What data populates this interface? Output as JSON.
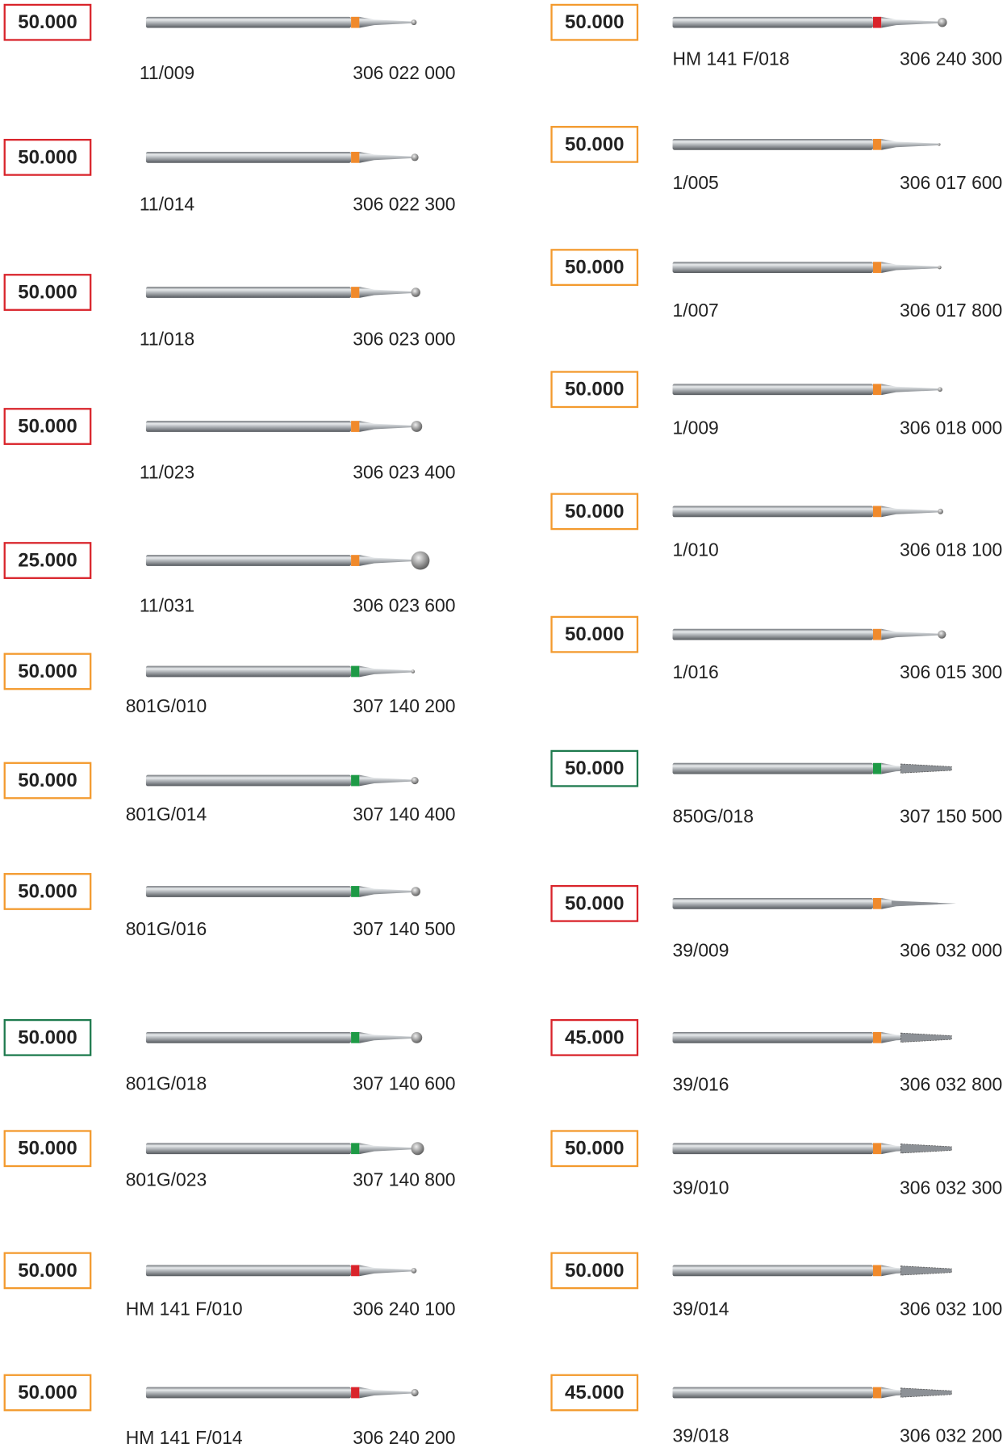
{
  "columns": [
    {
      "items": [
        {
          "speed": "50.000",
          "box_color": "#d9242b",
          "code": "11/009",
          "ref": "306 022 000",
          "band_color": "#f08a2c"
        },
        {
          "speed": "50.000",
          "box_color": "#d9242b",
          "code": "11/014",
          "ref": "306 022 300",
          "band_color": "#f08a2c"
        },
        {
          "speed": "50.000",
          "box_color": "#d9242b",
          "code": "11/018",
          "ref": "306 023 000",
          "band_color": "#f08a2c"
        },
        {
          "speed": "50.000",
          "box_color": "#d9242b",
          "code": "11/023",
          "ref": "306 023 400",
          "band_color": "#f08a2c"
        },
        {
          "speed": "25.000",
          "box_color": "#d9242b",
          "code": "11/031",
          "ref": "306 023 600",
          "band_color": "#f08a2c"
        },
        {
          "speed": "50.000",
          "box_color": "#f39a2e",
          "code": "801G/010",
          "ref": "307 140 200",
          "band_color": "#1e9a46"
        },
        {
          "speed": "50.000",
          "box_color": "#f39a2e",
          "code": "801G/014",
          "ref": "307 140 400",
          "band_color": "#1e9a46"
        },
        {
          "speed": "50.000",
          "box_color": "#f39a2e",
          "code": "801G/016",
          "ref": "307 140 500",
          "band_color": "#1e9a46"
        },
        {
          "speed": "50.000",
          "box_color": "#1e7a4e",
          "code": "801G/018",
          "ref": "307 140 600",
          "band_color": "#1e9a46"
        },
        {
          "speed": "50.000",
          "box_color": "#f39a2e",
          "code": "801G/023",
          "ref": "307 140 800",
          "band_color": "#1e9a46"
        },
        {
          "speed": "50.000",
          "box_color": "#f39a2e",
          "code": "HM 141 F/010",
          "ref": "306 240 100",
          "band_color": "#d9242b"
        },
        {
          "speed": "50.000",
          "box_color": "#f39a2e",
          "code": "HM 141 F/014",
          "ref": "306 240 200",
          "band_color": "#d9242b"
        }
      ]
    },
    {
      "items": [
        {
          "speed": "50.000",
          "box_color": "#f39a2e",
          "code": "HM 141 F/018",
          "ref": "306 240 300",
          "band_color": "#d9242b"
        },
        {
          "speed": "50.000",
          "box_color": "#f39a2e",
          "code": "1/005",
          "ref": "306 017 600",
          "band_color": "#f08a2c"
        },
        {
          "speed": "50.000",
          "box_color": "#f39a2e",
          "code": "1/007",
          "ref": "306 017 800",
          "band_color": "#f08a2c"
        },
        {
          "speed": "50.000",
          "box_color": "#f39a2e",
          "code": "1/009",
          "ref": "306 018 000",
          "band_color": "#f08a2c"
        },
        {
          "speed": "50.000",
          "box_color": "#f39a2e",
          "code": "1/010",
          "ref": "306 018 100",
          "band_color": "#f08a2c"
        },
        {
          "speed": "50.000",
          "box_color": "#f39a2e",
          "code": "1/016",
          "ref": "306 015 300",
          "band_color": "#f08a2c"
        },
        {
          "speed": "50.000",
          "box_color": "#1e7a4e",
          "code": "850G/018",
          "ref": "307 150 500",
          "band_color": "#1e9a46"
        },
        {
          "speed": "50.000",
          "box_color": "#d9242b",
          "code": "39/009",
          "ref": "306 032 000",
          "band_color": "#f08a2c"
        },
        {
          "speed": "45.000",
          "box_color": "#d9242b",
          "code": "39/016",
          "ref": "306 032 800",
          "band_color": "#f08a2c"
        },
        {
          "speed": "50.000",
          "box_color": "#f39a2e",
          "code": "39/010",
          "ref": "306 032 300",
          "band_color": "#f08a2c"
        },
        {
          "speed": "50.000",
          "box_color": "#f39a2e",
          "code": "39/014",
          "ref": "306 032 100",
          "band_color": "#f08a2c"
        },
        {
          "speed": "45.000",
          "box_color": "#f39a2e",
          "code": "39/018",
          "ref": "306 032 200",
          "band_color": "#f08a2c"
        }
      ]
    }
  ]
}
